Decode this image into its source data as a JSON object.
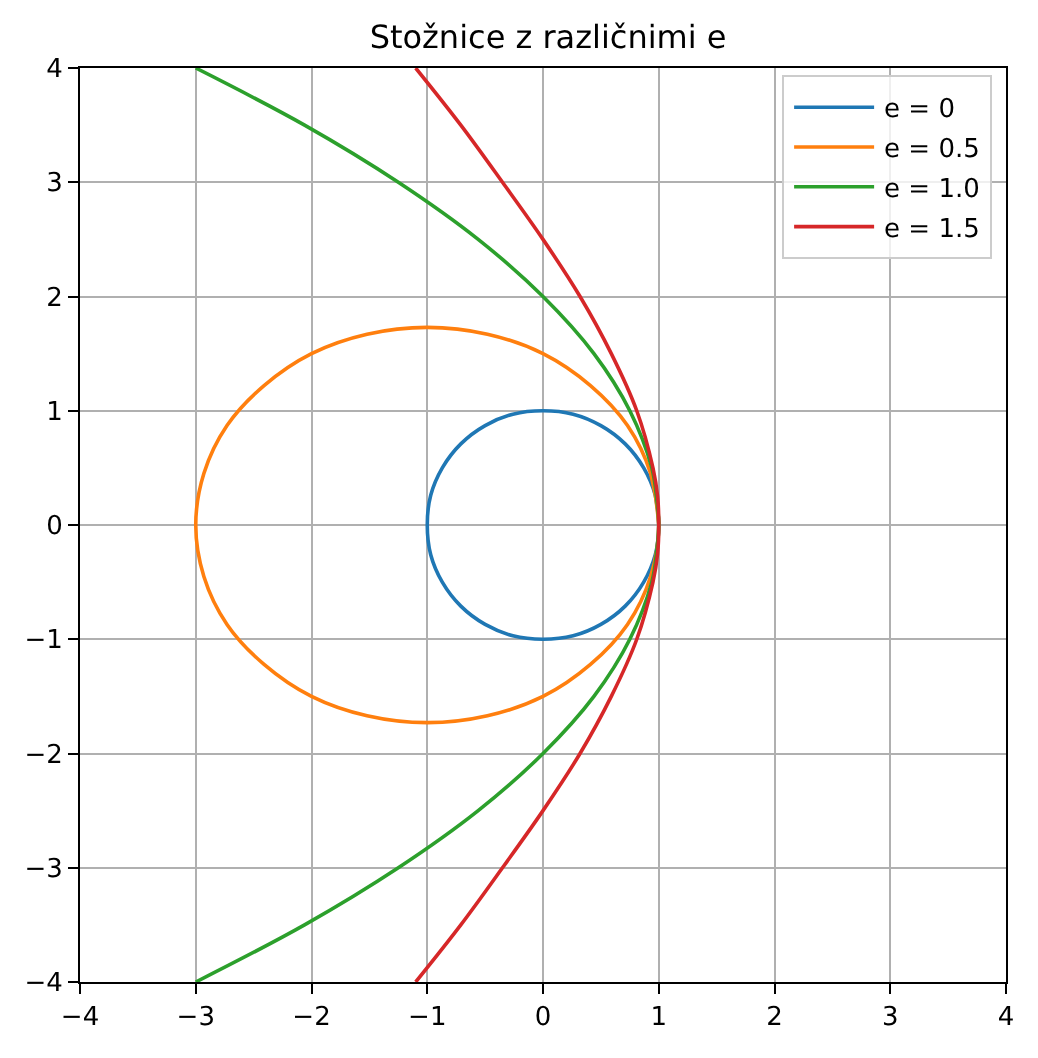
{
  "chart_data": {
    "type": "line",
    "title": "Stožnice z različnimi e",
    "xlim": [
      -4,
      4
    ],
    "ylim": [
      -4,
      4
    ],
    "xticks": [
      -4,
      -3,
      -2,
      -1,
      0,
      1,
      2,
      3,
      4
    ],
    "yticks": [
      -4,
      -3,
      -2,
      -1,
      0,
      1,
      2,
      3,
      4
    ],
    "grid": true,
    "legend": "top right",
    "line_style": "solid",
    "series": [
      {
        "name": "e = 0",
        "color": "#1f77b4",
        "x": [
          1,
          0.97,
          0.87,
          0.71,
          0.5,
          0.26,
          0,
          -0.26,
          -0.5,
          -0.71,
          -0.87,
          -0.97,
          -1,
          -0.97,
          -0.87,
          -0.71,
          -0.5,
          -0.26,
          0,
          0.26,
          0.5,
          0.71,
          0.87,
          0.97,
          1,
          0.97
        ],
        "values": [
          0,
          0.26,
          0.5,
          0.71,
          0.87,
          0.97,
          1,
          0.97,
          0.87,
          0.71,
          0.5,
          0.26,
          0,
          -0.26,
          -0.5,
          -0.71,
          -0.87,
          -0.97,
          -1,
          -0.97,
          -0.87,
          -0.71,
          -0.5,
          -0.26,
          0,
          0.26
        ]
      },
      {
        "name": "e = 0.5",
        "color": "#ff7f0e",
        "x": [
          1,
          0.93,
          0.73,
          0.41,
          0,
          -0.48,
          -1,
          -1.52,
          -2,
          -2.41,
          -2.73,
          -2.93,
          -3,
          -2.93,
          -2.73,
          -2.41,
          -2,
          -1.52,
          -1,
          -0.48,
          0,
          0.41,
          0.73,
          0.93,
          1,
          0.93
        ],
        "values": [
          0,
          0.45,
          0.87,
          1.22,
          1.5,
          1.67,
          1.73,
          1.67,
          1.5,
          1.22,
          0.87,
          0.45,
          0,
          -0.45,
          -0.87,
          -1.22,
          -1.5,
          -1.67,
          -1.73,
          -1.67,
          -1.5,
          -1.22,
          -0.87,
          -0.45,
          0,
          0.45
        ]
      },
      {
        "name": "e = 1.0",
        "color": "#2ca02c",
        "x": [
          -3,
          -2.06,
          -1.25,
          -0.56,
          0,
          0.44,
          0.75,
          0.94,
          0.98,
          1,
          0.98,
          0.94,
          0.75,
          0.44,
          0,
          -0.56,
          -1.25,
          -2.06,
          -3
        ],
        "values": [
          4,
          3.5,
          3,
          2.5,
          2,
          1.5,
          1,
          0.5,
          0.25,
          0,
          -0.25,
          -0.5,
          -1,
          -1.5,
          -2,
          -2.5,
          -3,
          -3.5,
          -4
        ]
      },
      {
        "name": "e = 1.5",
        "color": "#d62728",
        "x": [
          -1.1,
          -0.71,
          -0.35,
          0,
          0.32,
          0.59,
          0.81,
          0.95,
          0.99,
          1,
          0.99,
          0.95,
          0.81,
          0.59,
          0.32,
          0,
          -0.35,
          -0.71,
          -1.1
        ],
        "values": [
          4,
          3.5,
          3,
          2.5,
          2,
          1.5,
          1,
          0.5,
          0.25,
          0,
          -0.25,
          -0.5,
          -1,
          -1.5,
          -2,
          -2.5,
          -3,
          -3.5,
          -4
        ]
      }
    ]
  }
}
